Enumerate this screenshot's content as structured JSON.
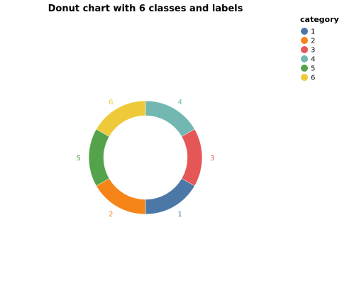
{
  "chart_data": {
    "type": "pie",
    "title": "Donut chart with 6 classes and labels",
    "legend": {
      "title": "category",
      "placement": "top-right"
    },
    "slices": [
      {
        "category": "1",
        "value": 4,
        "color": "#4c78a8"
      },
      {
        "category": "2",
        "value": 6,
        "color": "#f58518"
      },
      {
        "category": "3",
        "value": 10,
        "color": "#e45756"
      },
      {
        "category": "4",
        "value": 3,
        "color": "#72b7b2"
      },
      {
        "category": "5",
        "value": 7,
        "color": "#54a24b"
      },
      {
        "category": "6",
        "value": 8,
        "color": "#eeca3b"
      }
    ]
  }
}
